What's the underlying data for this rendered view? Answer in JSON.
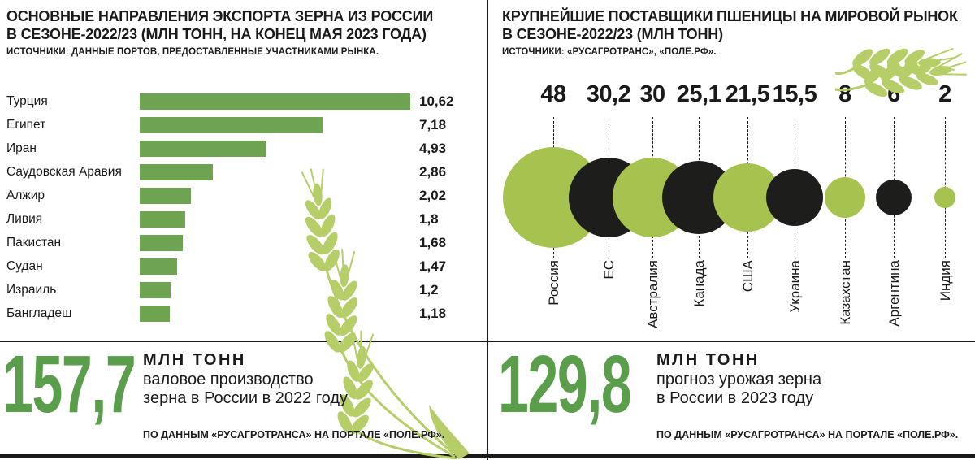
{
  "colors": {
    "bar_green": "#6ea352",
    "bubble_green": "#a6c24f",
    "bubble_black": "#1d1d1b",
    "big_number_green": "#5a9e4b",
    "wheat_green": "#b5ce67",
    "text": "#1a1a18"
  },
  "left_panel": {
    "title_line1": "ОСНОВНЫЕ НАПРАВЛЕНИЯ ЭКСПОРТА ЗЕРНА ИЗ РОССИИ",
    "title_line2": "В СЕЗОНЕ-2022/23 (МЛН ТОНН, НА КОНЕЦ МАЯ 2023 ГОДА)",
    "source": "ИСТОЧНИКИ: ДАННЫЕ ПОРТОВ, ПРЕДОСТАВЛЕННЫЕ УЧАСТНИКАМИ РЫНКА.",
    "footer": {
      "big_number": "157,7",
      "unit": "МЛН ТОНН",
      "desc_line1": "валовое производство",
      "desc_line2": "зерна в России в 2022 году",
      "source": "ПО ДАННЫМ «РУСАГРОТРАНСА» НА ПОРТАЛЕ «ПОЛЕ.РФ»."
    }
  },
  "right_panel": {
    "title_line1": "КРУПНЕЙШИЕ ПОСТАВЩИКИ ПШЕНИЦЫ НА МИРОВОЙ РЫНОК",
    "title_line2": "В СЕЗОНЕ-2022/23 (МЛН ТОНН)",
    "source": "ИСТОЧНИКИ: «РУСАГРОТРАНС», «ПОЛЕ.РФ».",
    "footer": {
      "big_number": "129,8",
      "unit": "МЛН ТОНН",
      "desc_line1": "прогноз урожая зерна",
      "desc_line2": "в России в 2023 году",
      "source": "ПО ДАННЫМ «РУСАГРОТРАНСА» НА ПОРТАЛЕ «ПОЛЕ.РФ»."
    }
  },
  "chart_data": [
    {
      "type": "bar",
      "orientation": "horizontal",
      "title": "Основные направления экспорта зерна из России в сезоне-2022/23 (млн тонн, на конец мая 2023 года)",
      "categories": [
        "Турция",
        "Египет",
        "Иран",
        "Саудовская Аравия",
        "Алжир",
        "Ливия",
        "Пакистан",
        "Судан",
        "Израиль",
        "Бангладеш"
      ],
      "values": [
        10.62,
        7.18,
        4.93,
        2.86,
        2.02,
        1.8,
        1.68,
        1.47,
        1.2,
        1.18
      ],
      "value_labels": [
        "10,62",
        "7,18",
        "4,93",
        "2,86",
        "2,02",
        "1,8",
        "1,68",
        "1,47",
        "1,2",
        "1,18"
      ],
      "xlim": [
        0,
        10.62
      ],
      "bar_color": "green",
      "legend": "none",
      "grid": false
    },
    {
      "type": "bubble",
      "title": "Крупнейшие поставщики пшеницы на мировой рынок в сезоне-2022/23 (млн тонн)",
      "categories": [
        "Россия",
        "ЕС",
        "Австралия",
        "Канада",
        "США",
        "Украина",
        "Казахстан",
        "Аргентина",
        "Индия"
      ],
      "values": [
        48,
        30.2,
        30,
        25.1,
        21.5,
        15.5,
        8,
        6,
        2
      ],
      "value_labels": [
        "48",
        "30,2",
        "30",
        "25,1",
        "21,5",
        "15,5",
        "8",
        "6",
        "2"
      ],
      "bubble_colors": [
        "green",
        "black",
        "green",
        "black",
        "green",
        "black",
        "green",
        "black",
        "green"
      ],
      "size_encoding": "area ~ value",
      "legend": "none",
      "grid": false
    }
  ]
}
